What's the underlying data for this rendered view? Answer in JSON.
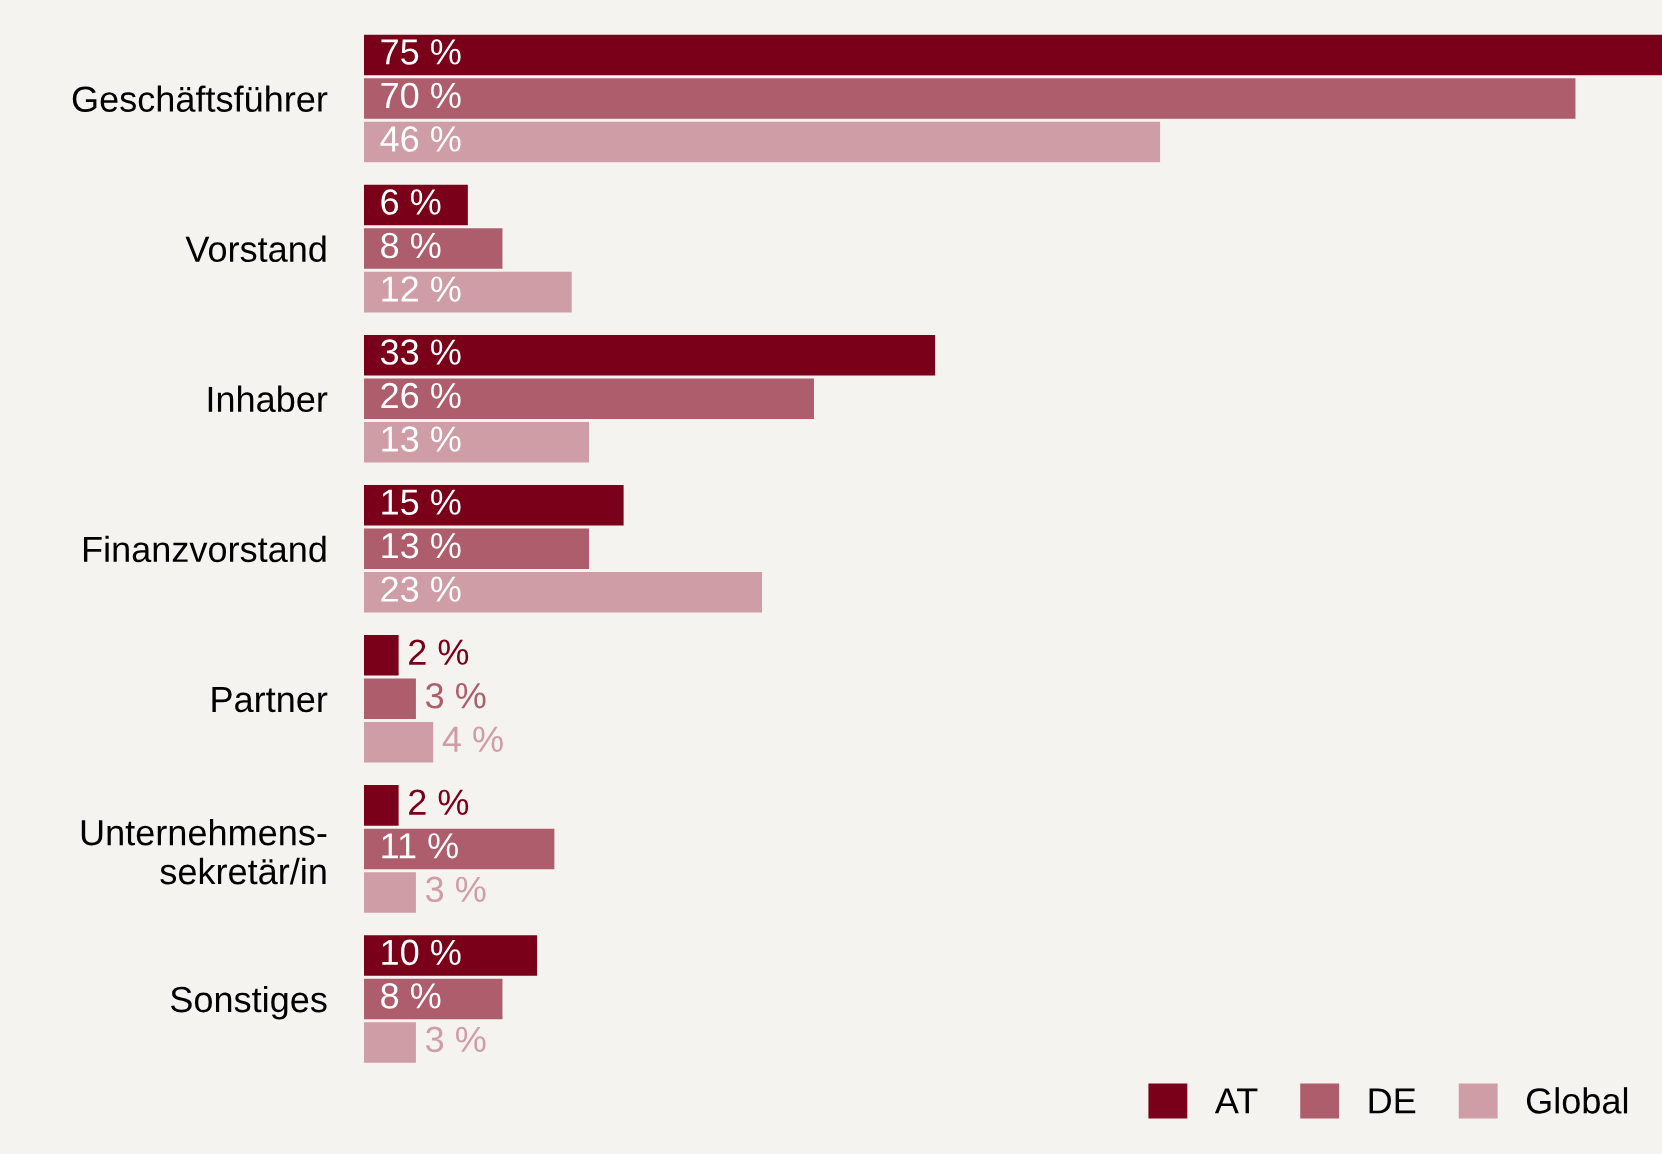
{
  "chart_data": {
    "type": "bar",
    "orientation": "horizontal",
    "categories": [
      "Geschäftsführer",
      "Vorstand",
      "Inhaber",
      "Finanzvorstand",
      "Partner",
      "Unternehmens-\nsekretär/in",
      "Sonstiges"
    ],
    "series": [
      {
        "name": "AT",
        "color": "#7a0019",
        "values": [
          75,
          6,
          33,
          15,
          2,
          2,
          10
        ],
        "value_labels": [
          "75 %",
          "6 %",
          "33 %",
          "15 %",
          "2 %",
          "2 %",
          "10 %"
        ]
      },
      {
        "name": "DE",
        "color": "#ad5d6b",
        "values": [
          70,
          8,
          26,
          13,
          3,
          11,
          8
        ],
        "value_labels": [
          "70 %",
          "8 %",
          "26 %",
          "13 %",
          "3 %",
          "11 %",
          "8 %"
        ]
      },
      {
        "name": "Global",
        "color": "#cf9da6",
        "values": [
          46,
          12,
          13,
          23,
          4,
          3,
          3
        ],
        "value_labels": [
          "46 %",
          "12 %",
          "13 %",
          "23 %",
          "4 %",
          "3 %",
          "3 %"
        ]
      }
    ],
    "legend": "bottom right",
    "grid": false
  }
}
